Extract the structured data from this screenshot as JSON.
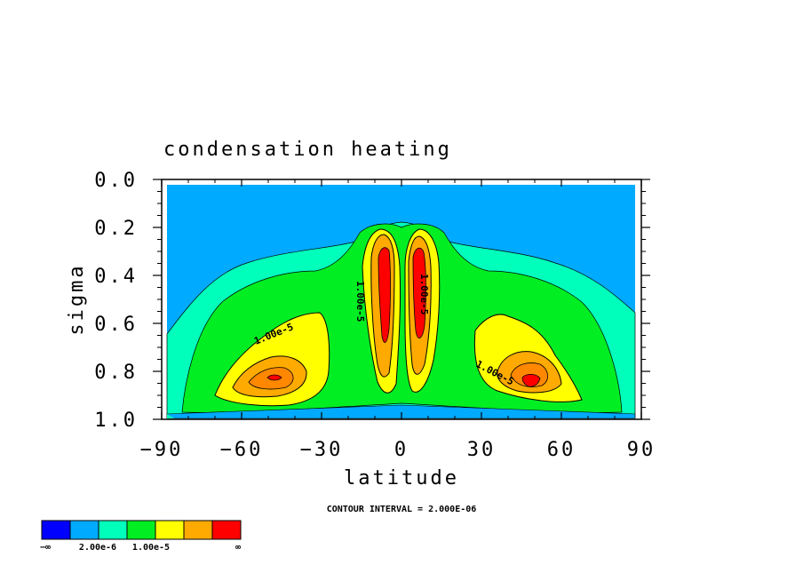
{
  "chart_data": {
    "type": "heatmap",
    "title": "condensation heating",
    "xlabel": "latitude",
    "ylabel": "sigma",
    "xlim": [
      -90,
      90
    ],
    "ylim": [
      1.0,
      0.0
    ],
    "x_ticks": [
      "−90",
      "−60",
      "−30",
      "0",
      "30",
      "60",
      "90"
    ],
    "y_ticks": [
      "0.0",
      "0.2",
      "0.4",
      "0.6",
      "0.8",
      "1.0"
    ],
    "contour_interval_text": "CONTOUR INTERVAL = 2.000E-06",
    "contour_labels": [
      "1.00e-5",
      "1.00e-5",
      "1.00e-5",
      "1.00e-5"
    ],
    "colorbar": {
      "colors": [
        "#0000ff",
        "#00aaff",
        "#00ffbb",
        "#00ee22",
        "#ffff00",
        "#ffaa00",
        "#ff0000"
      ],
      "labels": [
        "−∞",
        "2.00e-6",
        "1.00e-5",
        "∞"
      ]
    },
    "regions": {
      "background_color": "#00aaff",
      "outer_contour_color": "#00ffbb",
      "mid_contour_color": "#00ee22",
      "core_contour_color": "#ffff00",
      "high_contour_color": "#ffaa00",
      "peak_color": "#ff0000"
    },
    "grid": false
  }
}
